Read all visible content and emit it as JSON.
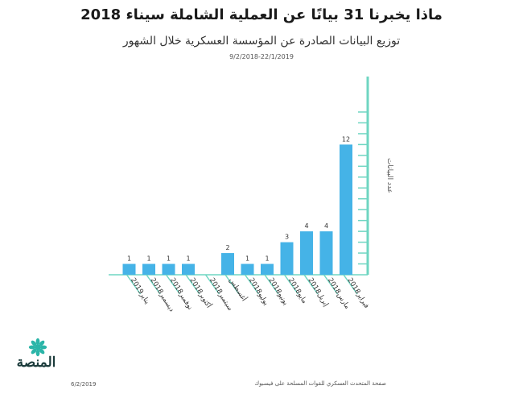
{
  "header": {
    "title": "ماذا يخبرنا 31 بيانًا عن العملية الشاملة سيناء 2018",
    "subtitle": "توزيع البيانات الصادرة عن المؤسسة العسكرية خلال الشهور",
    "date_range": "9/2/2018-22/1/2019"
  },
  "chart_data": {
    "type": "bar",
    "categories": [
      "فبراير2018",
      "مارس2018",
      "إبريل2018",
      "مايو2018",
      "يونيو2018",
      "يوليو2018",
      "أغسطس",
      "سبتمبر2018",
      "أكتوبر2018",
      "نوفمبر2018",
      "ديسمبر2018",
      "يناير2019"
    ],
    "values": [
      12,
      4,
      4,
      3,
      1,
      1,
      2,
      0,
      1,
      1,
      1,
      1
    ],
    "value_labels": [
      "12",
      "4",
      "4",
      "3",
      "1",
      "1",
      "2",
      "",
      "1",
      "1",
      "1",
      "1"
    ],
    "ylabel": "عدد البيانات",
    "ylim": [
      0,
      15
    ],
    "bar_color": "#45b3e7",
    "axis_color": "#6fd6c2",
    "order": "right-to-left"
  },
  "branding": {
    "logo_text": "المنصة",
    "logo_color": "#2bb5a8"
  },
  "footer": {
    "date": "6/2/2019",
    "source": "صفحة المتحدث العسكري للقوات المسلحة على فيسبوك"
  }
}
